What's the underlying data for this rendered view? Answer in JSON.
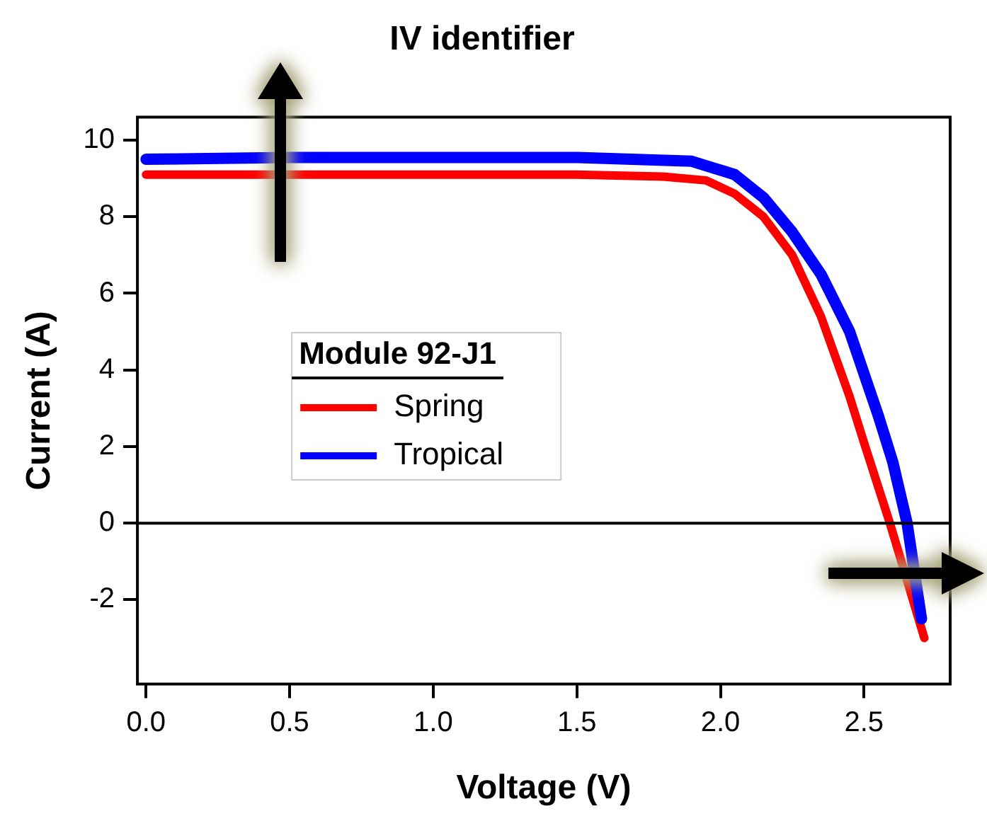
{
  "chart_data": {
    "type": "line",
    "title": "IV identifier",
    "xlabel": "Voltage (V)",
    "ylabel": "Current (A)",
    "legend_title": "Module 92-J1",
    "xlim": [
      -0.03,
      2.8
    ],
    "xticks": [
      {
        "value": 0,
        "label": "0.0"
      },
      {
        "value": 0.5,
        "label": "0.5"
      },
      {
        "value": 1,
        "label": "1.0"
      },
      {
        "value": 1.5,
        "label": "1.5"
      },
      {
        "value": 2,
        "label": "2.0"
      },
      {
        "value": 2.5,
        "label": "2.5"
      }
    ],
    "ylim": [
      -4.2,
      10.6
    ],
    "yticks": [
      -2,
      0,
      2,
      4,
      6,
      8,
      10
    ],
    "series": [
      {
        "name": "Spring",
        "color": "#ff0000",
        "x": [
          0,
          0.5,
          1,
          1.5,
          1.8,
          1.95,
          2.05,
          2.15,
          2.25,
          2.35,
          2.45,
          2.5,
          2.59,
          2.65,
          2.71
        ],
        "values": [
          9.1,
          9.1,
          9.1,
          9.1,
          9.05,
          8.95,
          8.6,
          8.0,
          7.0,
          5.4,
          3.3,
          2.1,
          0,
          -1.5,
          -3.0
        ]
      },
      {
        "name": "Tropical",
        "color": "#0000ff",
        "x": [
          0,
          0.5,
          1,
          1.5,
          1.9,
          2.05,
          2.15,
          2.25,
          2.35,
          2.45,
          2.55,
          2.6,
          2.65,
          2.7
        ],
        "values": [
          9.5,
          9.55,
          9.55,
          9.55,
          9.45,
          9.1,
          8.5,
          7.6,
          6.5,
          5.0,
          2.8,
          1.6,
          0,
          -2.5
        ]
      }
    ],
    "ref_lines": [
      {
        "axis": "y",
        "value": 0
      }
    ],
    "grid": false,
    "legend": "center",
    "marker": "none",
    "line_style": "solid"
  }
}
